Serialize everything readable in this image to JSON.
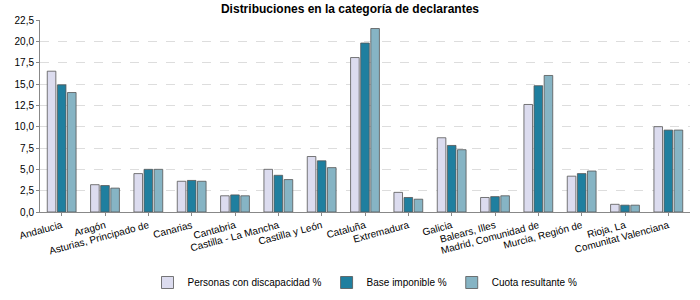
{
  "chart_data": {
    "type": "bar",
    "title": "Distribuciones en la categoría de declarantes",
    "categories": [
      "Andalucia",
      "Aragón",
      "Asturias, Principado de",
      "Canarias",
      "Cantabria",
      "Castilla - La Mancha",
      "Castilla y León",
      "Cataluña",
      "Extremadura",
      "Galicia",
      "Balears, Illes",
      "Madrid, Comunidad de",
      "Murcia, Región de",
      "Rioja, La",
      "Comunitat Valenciana"
    ],
    "series": [
      {
        "name": "Personas con discapacidad %",
        "color": "#dcdcef",
        "values": [
          16.5,
          3.2,
          4.5,
          3.6,
          1.9,
          5.0,
          6.5,
          18.1,
          2.3,
          8.7,
          1.7,
          12.6,
          4.2,
          0.9,
          10.0
        ]
      },
      {
        "name": "Base imponible %",
        "color": "#1f7f9f",
        "values": [
          14.9,
          3.1,
          5.0,
          3.7,
          2.0,
          4.3,
          6.0,
          19.8,
          1.7,
          7.8,
          1.8,
          14.8,
          4.5,
          0.8,
          9.6
        ]
      },
      {
        "name": "Cuota resultante %",
        "color": "#86b4c4",
        "values": [
          14.0,
          2.8,
          5.0,
          3.6,
          1.9,
          3.8,
          5.2,
          21.5,
          1.5,
          7.3,
          1.9,
          16.0,
          4.8,
          0.8,
          9.6
        ]
      }
    ],
    "ylim": [
      0,
      22.5
    ],
    "yticks": [
      {
        "value": 0,
        "label": "0,0"
      },
      {
        "value": 2.5,
        "label": "2,5"
      },
      {
        "value": 5,
        "label": "5,0"
      },
      {
        "value": 7.5,
        "label": "7,5"
      },
      {
        "value": 10,
        "label": "10,0"
      },
      {
        "value": 12.5,
        "label": "12,5"
      },
      {
        "value": 15,
        "label": "15,0"
      },
      {
        "value": 17.5,
        "label": "17,5"
      },
      {
        "value": 20,
        "label": "20,0"
      },
      {
        "value": 22.5,
        "label": "22,5"
      }
    ],
    "grid": true,
    "legend": "bottom"
  }
}
